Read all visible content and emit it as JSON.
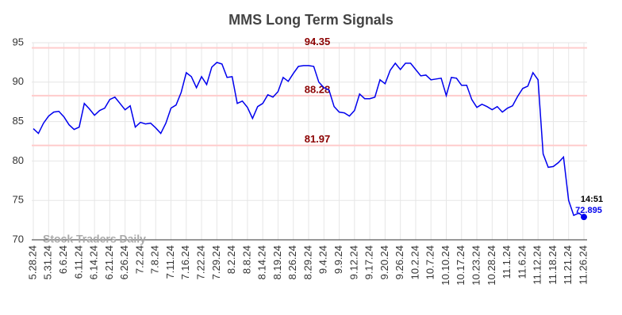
{
  "chart_data": {
    "type": "line",
    "title": "MMS Long Term Signals",
    "watermark": "Stock Traders Daily",
    "time_label": "14:51",
    "categories": [
      "5.28.24",
      null,
      null,
      "5.31.24",
      null,
      null,
      "6.6.24",
      null,
      null,
      "6.11.24",
      null,
      null,
      "6.14.24",
      null,
      null,
      "6.21.24",
      null,
      null,
      "6.26.24",
      null,
      null,
      "7.2.24",
      null,
      null,
      "7.8.24",
      null,
      null,
      "7.11.24",
      null,
      null,
      "7.16.24",
      null,
      null,
      "7.22.24",
      null,
      null,
      "7.29.24",
      null,
      null,
      "8.2.24",
      null,
      null,
      "8.8.24",
      null,
      null,
      "8.14.24",
      null,
      null,
      "8.19.24",
      null,
      null,
      "8.26.24",
      null,
      null,
      "8.29.24",
      null,
      null,
      "9.4.24",
      null,
      null,
      "9.9.24",
      null,
      null,
      "9.12.24",
      null,
      null,
      "9.17.24",
      null,
      null,
      "9.20.24",
      null,
      null,
      "9.26.24",
      null,
      null,
      "10.2.24",
      null,
      null,
      "10.7.24",
      null,
      null,
      "10.10.24",
      null,
      null,
      "10.17.24",
      null,
      null,
      "10.23.24",
      null,
      null,
      "10.28.24",
      null,
      null,
      "11.1.24",
      null,
      null,
      "11.6.24",
      null,
      null,
      "11.12.24",
      null,
      null,
      "11.18.24",
      null,
      null,
      "11.21.24",
      null,
      null,
      "11.26.24"
    ],
    "series": [
      {
        "name": "MMS",
        "color": "#0000ee",
        "values": [
          84.1,
          83.5,
          84.8,
          85.7,
          86.2,
          86.3,
          85.6,
          84.6,
          84.0,
          84.3,
          87.3,
          86.6,
          85.8,
          86.4,
          86.7,
          87.8,
          88.1,
          87.3,
          86.5,
          87.0,
          84.3,
          84.9,
          84.7,
          84.8,
          84.2,
          83.5,
          84.8,
          86.7,
          87.1,
          88.7,
          91.2,
          90.7,
          89.3,
          90.7,
          89.7,
          91.9,
          92.5,
          92.3,
          90.6,
          90.7,
          87.3,
          87.6,
          86.8,
          85.4,
          86.9,
          87.3,
          88.4,
          88.1,
          88.8,
          90.6,
          90.1,
          91.1,
          92.0,
          92.1,
          92.1,
          92.0,
          90.0,
          89.3,
          89.0,
          86.9,
          86.2,
          86.1,
          85.7,
          86.4,
          88.5,
          87.9,
          87.9,
          88.1,
          90.3,
          89.8,
          91.5,
          92.4,
          91.6,
          92.4,
          92.4,
          91.6,
          90.8,
          90.9,
          90.3,
          90.4,
          90.5,
          88.3,
          90.6,
          90.5,
          89.6,
          89.6,
          87.8,
          86.8,
          87.2,
          86.9,
          86.5,
          86.9,
          86.2,
          86.7,
          87.0,
          88.2,
          89.2,
          89.5,
          91.2,
          90.3,
          80.9,
          79.2,
          79.3,
          79.8,
          80.5,
          75.0,
          73.1,
          73.4,
          72.895
        ]
      }
    ],
    "hlines": [
      94.35,
      88.28,
      81.97
    ],
    "hline_color": "#ffcccc",
    "hline_label_color": "#8b0000",
    "ylim": [
      70,
      95
    ],
    "yticks": [
      70,
      75,
      80,
      85,
      90,
      95
    ],
    "grid": true
  }
}
